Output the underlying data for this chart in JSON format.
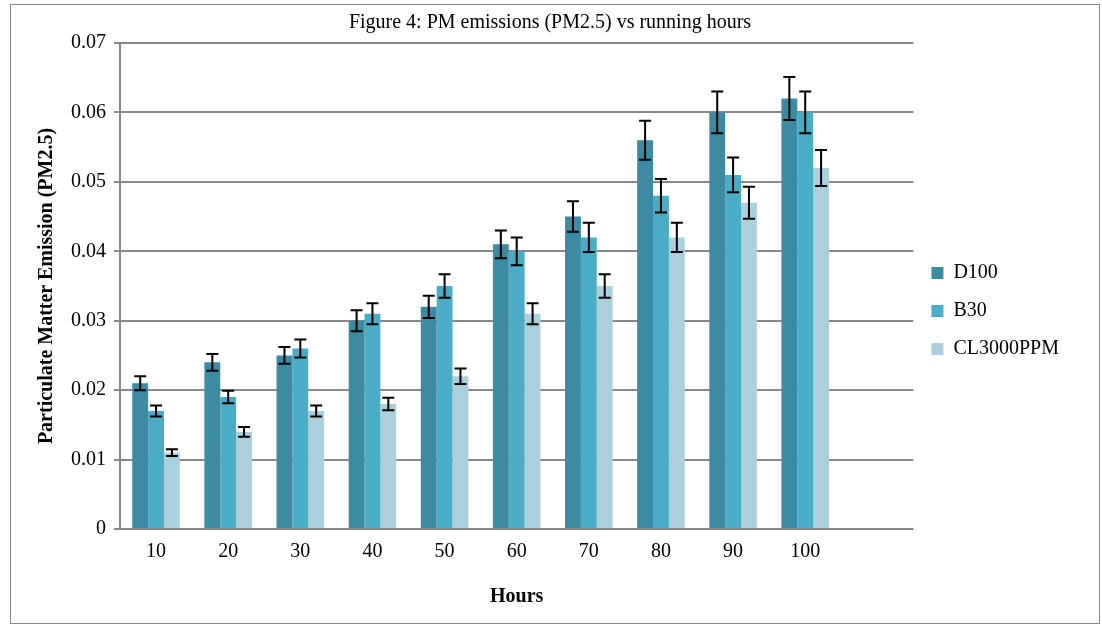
{
  "chart_data": {
    "type": "bar",
    "title": "Figure 4: PM emissions (PM2.5) vs running hours",
    "xlabel": "Hours",
    "ylabel": "Particulate Matter Emission (PM2.5)",
    "categories": [
      "10",
      "20",
      "30",
      "40",
      "50",
      "60",
      "70",
      "80",
      "90",
      "100",
      null
    ],
    "series": [
      {
        "name": "D100",
        "color": "#3d8ba3",
        "values": [
          0.021,
          0.024,
          0.025,
          0.03,
          0.032,
          0.041,
          0.045,
          0.056,
          0.06,
          0.062,
          null
        ],
        "errors": [
          0.001,
          0.0012,
          0.0012,
          0.0015,
          0.0016,
          0.002,
          0.0022,
          0.0028,
          0.003,
          0.0031,
          null
        ]
      },
      {
        "name": "B30",
        "color": "#4bacc6",
        "values": [
          0.017,
          0.019,
          0.026,
          0.031,
          0.035,
          0.04,
          0.042,
          0.048,
          0.051,
          0.06,
          null
        ],
        "errors": [
          0.0008,
          0.0009,
          0.0013,
          0.0015,
          0.0017,
          0.002,
          0.0021,
          0.0024,
          0.0025,
          0.003,
          null
        ]
      },
      {
        "name": "CL3000PPM",
        "color": "#abd0dc",
        "values": [
          0.011,
          0.014,
          0.017,
          0.018,
          0.022,
          0.031,
          0.035,
          0.042,
          0.047,
          0.052,
          null
        ],
        "errors": [
          0.0005,
          0.0007,
          0.0008,
          0.0009,
          0.0011,
          0.0015,
          0.0017,
          0.0021,
          0.0023,
          0.0026,
          null
        ]
      }
    ],
    "ylim": [
      0,
      0.07
    ],
    "yticks": [
      0,
      0.01,
      0.02,
      0.03,
      0.04,
      0.05,
      0.06,
      0.07
    ],
    "grid": "y",
    "legend": "right"
  }
}
